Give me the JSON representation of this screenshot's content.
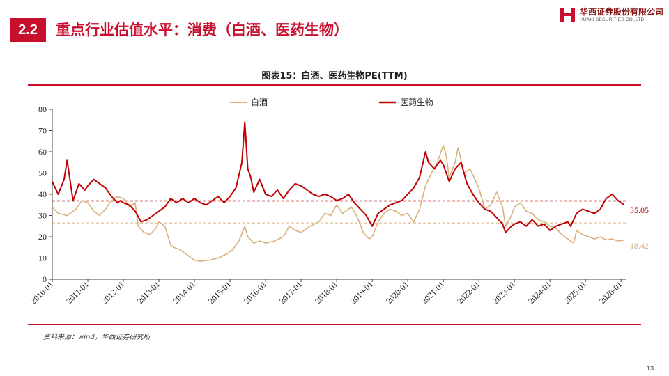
{
  "header": {
    "section_number": "2.2",
    "title": "重点行业估值水平：消费（白酒、医药生物）",
    "logo_cn": "华西证券股份有限公司",
    "logo_en": "HUAXI SECURITIES CO.,LTD."
  },
  "colors": {
    "brand_red": "#c8102e",
    "baijiu": "#d9b07a",
    "pharma": "#c00000"
  },
  "chart_data": {
    "type": "line",
    "title": "图表15：白酒、医药生物PE(TTM)",
    "x_labels": [
      "2010-01",
      "2011-01",
      "2012-01",
      "2013-01",
      "2014-01",
      "2015-01",
      "2016-01",
      "2017-01",
      "2018-01",
      "2019-01",
      "2020-01",
      "2021-01",
      "2022-01",
      "2023-01",
      "2024-01",
      "2025-01",
      "2026-01"
    ],
    "ylim": [
      0,
      80
    ],
    "yticks": [
      0,
      10,
      20,
      30,
      40,
      50,
      60,
      70,
      80
    ],
    "legend_position": "top",
    "grid": false,
    "series": [
      {
        "name": "白酒",
        "color": "#d9b07a",
        "reference_line": 26.5,
        "end_label": "18.42",
        "points": [
          [
            "2010-01",
            34
          ],
          [
            "2010-03",
            31
          ],
          [
            "2010-06",
            30
          ],
          [
            "2010-09",
            33
          ],
          [
            "2010-11",
            37
          ],
          [
            "2011-01",
            36
          ],
          [
            "2011-03",
            32
          ],
          [
            "2011-05",
            30
          ],
          [
            "2011-07",
            33
          ],
          [
            "2011-09",
            37
          ],
          [
            "2011-11",
            39
          ],
          [
            "2012-01",
            38
          ],
          [
            "2012-03",
            34
          ],
          [
            "2012-05",
            36
          ],
          [
            "2012-06",
            25
          ],
          [
            "2012-08",
            22
          ],
          [
            "2012-10",
            21
          ],
          [
            "2012-12",
            24
          ],
          [
            "2013-01",
            27
          ],
          [
            "2013-03",
            25
          ],
          [
            "2013-05",
            16
          ],
          [
            "2013-06",
            15
          ],
          [
            "2013-08",
            14
          ],
          [
            "2013-10",
            12
          ],
          [
            "2013-12",
            10
          ],
          [
            "2014-01",
            9
          ],
          [
            "2014-03",
            8.5
          ],
          [
            "2014-06",
            9
          ],
          [
            "2014-09",
            10
          ],
          [
            "2014-12",
            12
          ],
          [
            "2015-02",
            14
          ],
          [
            "2015-04",
            18
          ],
          [
            "2015-06",
            25
          ],
          [
            "2015-07",
            20
          ],
          [
            "2015-09",
            17
          ],
          [
            "2015-11",
            18
          ],
          [
            "2016-01",
            17
          ],
          [
            "2016-04",
            18
          ],
          [
            "2016-07",
            20
          ],
          [
            "2016-09",
            25
          ],
          [
            "2016-11",
            23
          ],
          [
            "2017-01",
            22
          ],
          [
            "2017-04",
            25
          ],
          [
            "2017-07",
            27
          ],
          [
            "2017-09",
            31
          ],
          [
            "2017-11",
            30
          ],
          [
            "2018-01",
            35
          ],
          [
            "2018-03",
            31
          ],
          [
            "2018-06",
            34
          ],
          [
            "2018-08",
            29
          ],
          [
            "2018-10",
            22
          ],
          [
            "2018-12",
            19
          ],
          [
            "2019-01",
            20
          ],
          [
            "2019-03",
            27
          ],
          [
            "2019-05",
            31
          ],
          [
            "2019-07",
            33
          ],
          [
            "2019-09",
            32
          ],
          [
            "2019-11",
            30
          ],
          [
            "2020-01",
            31
          ],
          [
            "2020-03",
            27
          ],
          [
            "2020-05",
            33
          ],
          [
            "2020-07",
            44
          ],
          [
            "2020-09",
            50
          ],
          [
            "2020-11",
            55
          ],
          [
            "2021-01",
            63
          ],
          [
            "2021-02",
            58
          ],
          [
            "2021-03",
            48
          ],
          [
            "2021-05",
            55
          ],
          [
            "2021-06",
            62
          ],
          [
            "2021-08",
            50
          ],
          [
            "2021-10",
            52
          ],
          [
            "2021-12",
            46
          ],
          [
            "2022-01",
            43
          ],
          [
            "2022-03",
            33
          ],
          [
            "2022-05",
            35
          ],
          [
            "2022-07",
            41
          ],
          [
            "2022-09",
            34
          ],
          [
            "2022-10",
            25
          ],
          [
            "2022-12",
            30
          ],
          [
            "2023-01",
            34
          ],
          [
            "2023-03",
            36
          ],
          [
            "2023-05",
            32
          ],
          [
            "2023-07",
            31
          ],
          [
            "2023-09",
            28
          ],
          [
            "2023-11",
            27
          ],
          [
            "2024-01",
            25
          ],
          [
            "2024-03",
            24
          ],
          [
            "2024-05",
            21
          ],
          [
            "2024-07",
            19
          ],
          [
            "2024-09",
            17
          ],
          [
            "2024-10",
            23
          ],
          [
            "2024-12",
            21
          ],
          [
            "2025-02",
            20
          ],
          [
            "2025-04",
            19
          ],
          [
            "2025-06",
            20
          ],
          [
            "2025-08",
            18.5
          ],
          [
            "2025-10",
            19
          ],
          [
            "2025-12",
            18
          ],
          [
            "2026-02",
            18.42
          ]
        ]
      },
      {
        "name": "医药生物",
        "color": "#c00000",
        "reference_line": 36.9,
        "end_label": "35.05",
        "points": [
          [
            "2010-01",
            46
          ],
          [
            "2010-03",
            40
          ],
          [
            "2010-05",
            47
          ],
          [
            "2010-06",
            56
          ],
          [
            "2010-08",
            37
          ],
          [
            "2010-10",
            45
          ],
          [
            "2010-12",
            42
          ],
          [
            "2011-01",
            44
          ],
          [
            "2011-03",
            47
          ],
          [
            "2011-05",
            45
          ],
          [
            "2011-07",
            43
          ],
          [
            "2011-09",
            39
          ],
          [
            "2011-11",
            36
          ],
          [
            "2011-12",
            37
          ],
          [
            "2012-01",
            36
          ],
          [
            "2012-03",
            35
          ],
          [
            "2012-05",
            32
          ],
          [
            "2012-07",
            27
          ],
          [
            "2012-09",
            28
          ],
          [
            "2012-11",
            30
          ],
          [
            "2013-01",
            32
          ],
          [
            "2013-03",
            34
          ],
          [
            "2013-05",
            38
          ],
          [
            "2013-07",
            36
          ],
          [
            "2013-09",
            38
          ],
          [
            "2013-11",
            36
          ],
          [
            "2014-01",
            38
          ],
          [
            "2014-03",
            36
          ],
          [
            "2014-05",
            35
          ],
          [
            "2014-07",
            37
          ],
          [
            "2014-09",
            39
          ],
          [
            "2014-11",
            36
          ],
          [
            "2015-01",
            39
          ],
          [
            "2015-03",
            43
          ],
          [
            "2015-05",
            55
          ],
          [
            "2015-06",
            74
          ],
          [
            "2015-07",
            52
          ],
          [
            "2015-08",
            48
          ],
          [
            "2015-09",
            41
          ],
          [
            "2015-11",
            47
          ],
          [
            "2016-01",
            40
          ],
          [
            "2016-03",
            39
          ],
          [
            "2016-05",
            42
          ],
          [
            "2016-07",
            38
          ],
          [
            "2016-09",
            42
          ],
          [
            "2016-11",
            45
          ],
          [
            "2017-01",
            44
          ],
          [
            "2017-03",
            42
          ],
          [
            "2017-05",
            40
          ],
          [
            "2017-07",
            39
          ],
          [
            "2017-09",
            40
          ],
          [
            "2017-11",
            39
          ],
          [
            "2018-01",
            37
          ],
          [
            "2018-03",
            38
          ],
          [
            "2018-05",
            40
          ],
          [
            "2018-07",
            36
          ],
          [
            "2018-09",
            33
          ],
          [
            "2018-11",
            30
          ],
          [
            "2019-01",
            25
          ],
          [
            "2019-03",
            31
          ],
          [
            "2019-05",
            33
          ],
          [
            "2019-07",
            35
          ],
          [
            "2019-09",
            36
          ],
          [
            "2019-11",
            37
          ],
          [
            "2020-01",
            40
          ],
          [
            "2020-03",
            43
          ],
          [
            "2020-05",
            48
          ],
          [
            "2020-07",
            60
          ],
          [
            "2020-08",
            55
          ],
          [
            "2020-10",
            52
          ],
          [
            "2020-12",
            56
          ],
          [
            "2021-01",
            54
          ],
          [
            "2021-03",
            46
          ],
          [
            "2021-05",
            52
          ],
          [
            "2021-07",
            55
          ],
          [
            "2021-09",
            45
          ],
          [
            "2021-11",
            40
          ],
          [
            "2022-01",
            36
          ],
          [
            "2022-03",
            33
          ],
          [
            "2022-05",
            32
          ],
          [
            "2022-07",
            29
          ],
          [
            "2022-09",
            26
          ],
          [
            "2022-10",
            22
          ],
          [
            "2022-12",
            25
          ],
          [
            "2023-01",
            26
          ],
          [
            "2023-03",
            27
          ],
          [
            "2023-05",
            25
          ],
          [
            "2023-07",
            28
          ],
          [
            "2023-09",
            25
          ],
          [
            "2023-11",
            26
          ],
          [
            "2024-01",
            23
          ],
          [
            "2024-03",
            25
          ],
          [
            "2024-05",
            26
          ],
          [
            "2024-07",
            27
          ],
          [
            "2024-08",
            25
          ],
          [
            "2024-10",
            31
          ],
          [
            "2024-12",
            33
          ],
          [
            "2025-02",
            32
          ],
          [
            "2025-04",
            31
          ],
          [
            "2025-06",
            33
          ],
          [
            "2025-08",
            38
          ],
          [
            "2025-10",
            40
          ],
          [
            "2025-12",
            37
          ],
          [
            "2026-02",
            35.05
          ]
        ]
      }
    ]
  },
  "source": "资料来源：wind，华西证券研究所",
  "page_number": "13"
}
